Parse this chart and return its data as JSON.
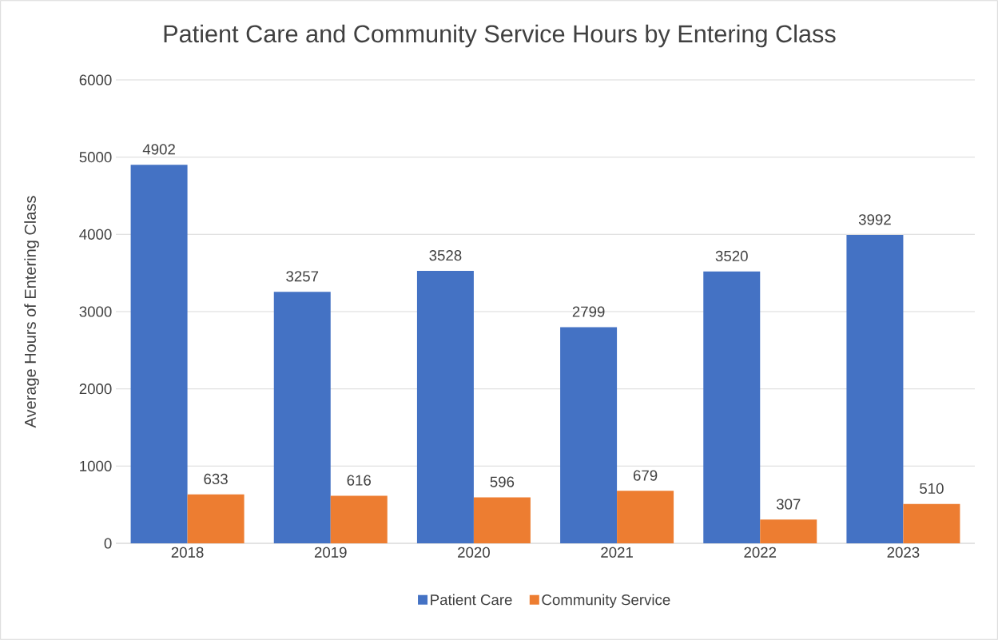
{
  "chart_data": {
    "type": "bar",
    "title": "Patient Care and Community Service Hours by Entering Class",
    "ylabel": "Average Hours of Entering Class",
    "categories": [
      "2018",
      "2019",
      "2020",
      "2021",
      "2022",
      "2023"
    ],
    "series": [
      {
        "name": "Patient Care",
        "color": "#4472c4",
        "values": [
          4902,
          3257,
          3528,
          2799,
          3520,
          3992
        ]
      },
      {
        "name": "Community Service",
        "color": "#ed7d31",
        "values": [
          633,
          616,
          596,
          679,
          307,
          510
        ]
      }
    ],
    "ylim": [
      0,
      6000
    ],
    "yticks": [
      0,
      1000,
      2000,
      3000,
      4000,
      5000,
      6000
    ],
    "grid": "y",
    "legend": "bottom",
    "data_labels": true
  }
}
